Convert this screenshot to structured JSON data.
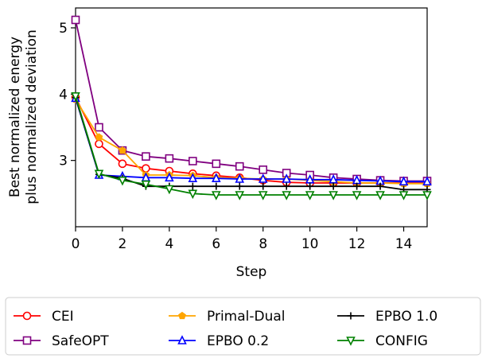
{
  "chart_data": {
    "type": "line",
    "xlabel": "Step",
    "ylabel_lines": [
      "Best normalized energy",
      "plus normalized deviation"
    ],
    "xlim": [
      0,
      15
    ],
    "ylim": [
      2.0,
      5.3
    ],
    "x_ticks": [
      0,
      2,
      4,
      6,
      8,
      10,
      12,
      14
    ],
    "y_ticks": [
      3,
      4,
      5
    ],
    "grid": false,
    "legend_position": "bottom",
    "legend_columns": 3,
    "x": [
      0,
      1,
      2,
      3,
      4,
      5,
      6,
      7,
      8,
      9,
      10,
      11,
      12,
      13,
      14,
      15
    ],
    "series": [
      {
        "name": "CEI",
        "color": "#ff0000",
        "marker": "circle-open",
        "values": [
          3.95,
          3.25,
          2.95,
          2.88,
          2.84,
          2.8,
          2.77,
          2.74,
          2.7,
          2.67,
          2.66,
          2.66,
          2.66,
          2.66,
          2.66,
          2.66
        ]
      },
      {
        "name": "SafeOPT",
        "color": "#800080",
        "marker": "square-open",
        "values": [
          5.12,
          3.5,
          3.15,
          3.06,
          3.03,
          2.99,
          2.95,
          2.91,
          2.86,
          2.81,
          2.78,
          2.74,
          2.72,
          2.7,
          2.69,
          2.69
        ]
      },
      {
        "name": "Primal-Dual",
        "color": "#ffa500",
        "marker": "pentagon-filled",
        "values": [
          3.92,
          3.35,
          3.15,
          2.78,
          2.78,
          2.77,
          2.74,
          2.73,
          2.72,
          2.72,
          2.7,
          2.68,
          2.66,
          2.66,
          2.65,
          2.65
        ]
      },
      {
        "name": "EPBO 0.2",
        "color": "#0000ff",
        "marker": "triangle-up-open",
        "values": [
          3.94,
          2.78,
          2.76,
          2.74,
          2.74,
          2.73,
          2.73,
          2.72,
          2.72,
          2.72,
          2.71,
          2.71,
          2.7,
          2.69,
          2.68,
          2.68
        ]
      },
      {
        "name": "EPBO 1.0",
        "color": "#000000",
        "marker": "plus",
        "values": [
          3.95,
          2.79,
          2.73,
          2.61,
          2.61,
          2.61,
          2.61,
          2.61,
          2.61,
          2.61,
          2.61,
          2.61,
          2.61,
          2.61,
          2.56,
          2.56
        ]
      },
      {
        "name": "CONFIG",
        "color": "#008000",
        "marker": "triangle-down-open",
        "values": [
          3.97,
          2.8,
          2.7,
          2.64,
          2.57,
          2.5,
          2.48,
          2.48,
          2.48,
          2.48,
          2.48,
          2.48,
          2.48,
          2.48,
          2.48,
          2.48
        ]
      }
    ]
  }
}
